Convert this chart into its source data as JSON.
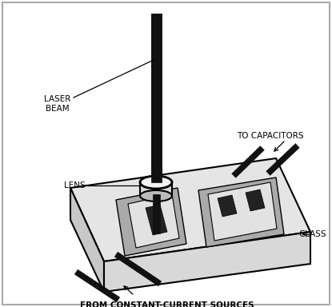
{
  "figure_width": 4.15,
  "figure_height": 3.84,
  "dpi": 100,
  "bg_color": "#ffffff",
  "border_color": "#aaaaaa",
  "line_color": "#000000",
  "labels": {
    "laser_beam": "LASER\nBEAM",
    "lens": "LENS",
    "to_capacitors": "TO CAPACITORS",
    "glass": "GLASS",
    "from_sources": "FROM CONSTANT-CURRENT SOURCES"
  },
  "font_size": 7.5
}
